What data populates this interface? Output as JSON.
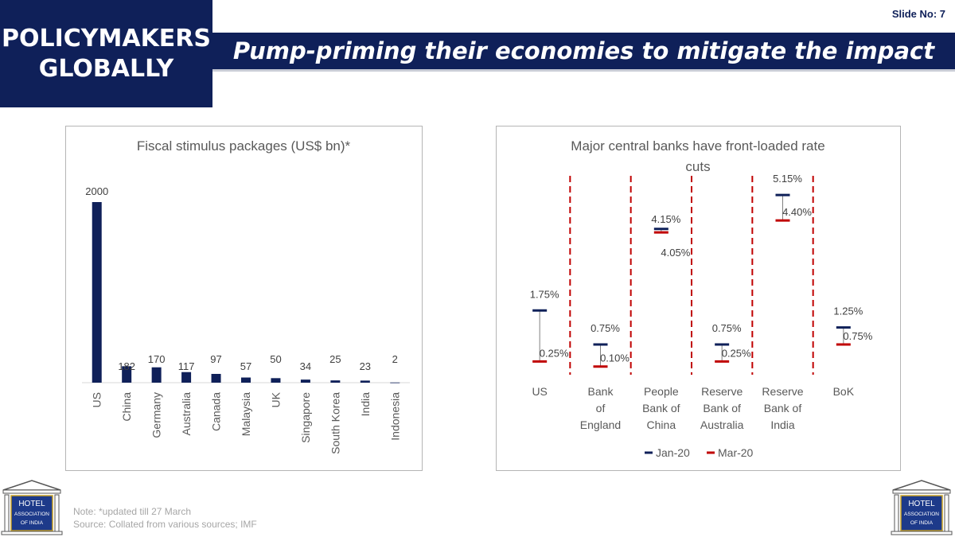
{
  "slide_no": "Slide No: 7",
  "section_title": "POLICYMAKERS\nGLOBALLY",
  "headline": "Pump-priming their economies to mitigate the impact",
  "notes": {
    "line1": "Note: *updated till 27 March",
    "line2": "Source: Collated from various sources; IMF"
  },
  "logo": {
    "line1": "HOTEL",
    "line2": "ASSOCIATION",
    "line3": "OF INDIA"
  },
  "colors": {
    "navy": "#0f2059",
    "red": "#c00000",
    "grey_text": "#595959"
  },
  "chart_data": [
    {
      "type": "bar",
      "title": "Fiscal stimulus packages (US$ bn)*",
      "categories": [
        "US",
        "China",
        "Germany",
        "Australia",
        "Canada",
        "Malaysia",
        "UK",
        "Singapore",
        "South Korea",
        "India",
        "Indonesia"
      ],
      "values": [
        2000,
        182,
        170,
        117,
        97,
        57,
        50,
        34,
        25,
        23,
        2
      ],
      "data_labels": [
        "2000",
        "182",
        "170",
        "117",
        "97",
        "57",
        "50",
        "34",
        "25",
        "23",
        "2"
      ],
      "ylim": [
        0,
        2000
      ],
      "grid": false,
      "color": "#0f2059"
    },
    {
      "type": "dumbbell",
      "title": "Major central banks have front-loaded rate cuts",
      "categories": [
        "US",
        "Bank of England",
        "People Bank of China",
        "Reserve Bank of Australia",
        "Reserve Bank of India",
        "BoK"
      ],
      "series": [
        {
          "name": "Jan-20",
          "values": [
            1.75,
            0.75,
            4.15,
            0.75,
            5.15,
            1.25
          ],
          "labels": [
            "1.75%",
            "0.75%",
            "4.15%",
            "0.75%",
            "5.15%",
            "1.25%"
          ],
          "color": "#0f2059"
        },
        {
          "name": "Mar-20",
          "values": [
            0.25,
            0.1,
            4.05,
            0.25,
            4.4,
            0.75
          ],
          "labels": [
            "0.25%",
            "0.10%",
            "4.05%",
            "0.25%",
            "4.40%",
            "0.75%"
          ],
          "color": "#c00000"
        }
      ],
      "legend": "bottom",
      "grid": false,
      "separators": "dashed red"
    }
  ]
}
